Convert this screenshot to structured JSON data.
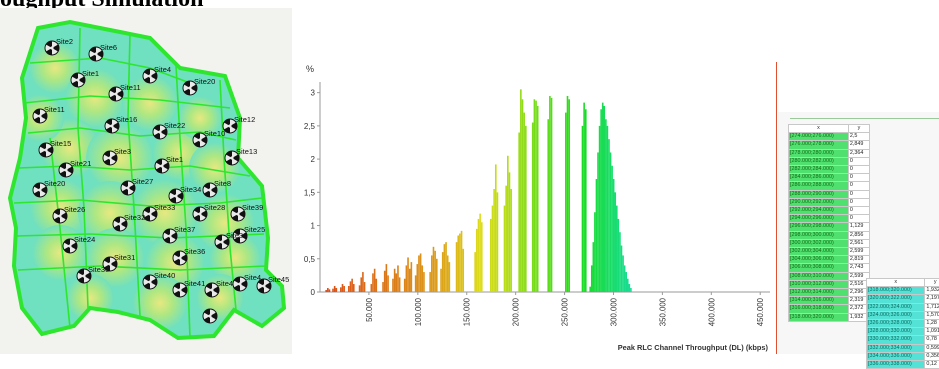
{
  "heading": "oughput Simulation",
  "map": {
    "site_labels": [
      "Site2",
      "Site6",
      "Site4",
      "Site1",
      "Site11",
      "Site20",
      "Site12",
      "Site11",
      "Site16",
      "Site22",
      "Site10",
      "Site15",
      "Site3",
      "Site13",
      "Site21",
      "Site1",
      "Site20",
      "Site27",
      "Site34",
      "Site8",
      "Site26",
      "Site33",
      "Site28",
      "Site39",
      "Site25",
      "Site32",
      "Site37",
      "Site38",
      "Site24",
      "Site31",
      "Site36",
      "Site30",
      "Site40",
      "Site41",
      "Site4",
      "Site4",
      "Site45"
    ]
  },
  "chart_data": {
    "type": "bar",
    "ylabel": "%",
    "xlabel": "Peak RLC Channel Throughput (DL) (kbps)",
    "xlim": [
      0,
      460
    ],
    "ylim": [
      0,
      3.1
    ],
    "yticks": [
      "0",
      "0,5",
      "1",
      "1,5",
      "2",
      "2,5",
      "3"
    ],
    "xticks": [
      "50.000",
      "100.000",
      "150.000",
      "200.000",
      "250.000",
      "300.000",
      "350.000",
      "400.000",
      "450.000"
    ],
    "bin_width": 1,
    "clusters": [
      {
        "center": 8,
        "values": [
          0.03,
          0.06,
          0.04
        ]
      },
      {
        "center": 15,
        "values": [
          0.05,
          0.09,
          0.06
        ]
      },
      {
        "center": 23,
        "values": [
          0.07,
          0.12,
          0.09
        ]
      },
      {
        "center": 32,
        "values": [
          0.09,
          0.16,
          0.2,
          0.12
        ]
      },
      {
        "center": 43,
        "values": [
          0.1,
          0.22,
          0.3,
          0.15
        ]
      },
      {
        "center": 55,
        "values": [
          0.12,
          0.28,
          0.35,
          0.2
        ]
      },
      {
        "center": 67,
        "values": [
          0.15,
          0.32,
          0.42,
          0.25
        ]
      },
      {
        "center": 78,
        "values": [
          0.2,
          0.35,
          0.28,
          0.4,
          0.22
        ]
      },
      {
        "center": 90,
        "values": [
          0.2,
          0.4,
          0.52,
          0.35,
          0.45
        ]
      },
      {
        "center": 102,
        "values": [
          0.25,
          0.42,
          0.55,
          0.58,
          0.4,
          0.3
        ]
      },
      {
        "center": 116,
        "values": [
          0.3,
          0.55,
          0.68,
          0.62,
          0.5
        ]
      },
      {
        "center": 128,
        "values": [
          0.35,
          0.6,
          0.72,
          0.75,
          0.55,
          0.45
        ]
      },
      {
        "center": 143,
        "values": [
          0.75,
          0.85,
          0.88,
          0.92,
          0.65
        ]
      },
      {
        "center": 162,
        "values": [
          0.6,
          0.95,
          1.1,
          1.18,
          1.05
        ]
      },
      {
        "center": 178,
        "values": [
          1.1,
          1.3,
          1.55,
          1.92,
          1.5
        ]
      },
      {
        "center": 192,
        "values": [
          1.3,
          1.6,
          2.05,
          1.8,
          1.55
        ]
      },
      {
        "center": 207,
        "values": [
          2.4,
          3.05,
          2.9,
          2.7,
          2.5
        ]
      },
      {
        "center": 220,
        "values": [
          2.55,
          2.9,
          2.88,
          2.8
        ]
      },
      {
        "center": 235,
        "values": [
          2.6,
          2.95,
          2.92
        ]
      },
      {
        "center": 253,
        "values": [
          2.7,
          2.95,
          2.9
        ]
      },
      {
        "center": 270,
        "values": [
          2.5,
          2.85,
          2.75
        ]
      },
      {
        "center": 297,
        "values": [
          0.08,
          0.4,
          0.75,
          1.2,
          1.7,
          2.1,
          2.5,
          2.75,
          2.85,
          2.8,
          2.6,
          2.5,
          2.3,
          2.1,
          1.9,
          1.7,
          1.5,
          1.3,
          1.1,
          0.9,
          0.7,
          0.55,
          0.4,
          0.3,
          0.2,
          0.12,
          0.06
        ]
      }
    ]
  },
  "table1": {
    "headers": [
      "x",
      "y"
    ],
    "rows": [
      [
        "[274.000;276.000)",
        "2,5"
      ],
      [
        "[276.000;278.000)",
        "2,849"
      ],
      [
        "[278.000;280.000)",
        "2,364"
      ],
      [
        "[280.000;282.000)",
        "0"
      ],
      [
        "[282.000;284.000)",
        "0"
      ],
      [
        "[284.000;286.000)",
        "0"
      ],
      [
        "[286.000;288.000)",
        "0"
      ],
      [
        "[288.000;290.000)",
        "0"
      ],
      [
        "[290.000;292.000)",
        "0"
      ],
      [
        "[292.000;294.000)",
        "0"
      ],
      [
        "[294.000;296.000)",
        "0"
      ],
      [
        "[296.000;298.000)",
        "1,129"
      ],
      [
        "[298.000;300.000)",
        "2,856"
      ],
      [
        "[300.000;302.000)",
        "2,561"
      ],
      [
        "[302.000;304.000)",
        "2,599"
      ],
      [
        "[304.000;306.000)",
        "2,819"
      ],
      [
        "[306.000;308.000)",
        "2,743"
      ],
      [
        "[308.000;310.000)",
        "2,599"
      ],
      [
        "[310.000;312.000)",
        "2,516"
      ],
      [
        "[312.000;314.000)",
        "2,296"
      ],
      [
        "[314.000;316.000)",
        "2,319"
      ],
      [
        "[316.000;318.000)",
        "2,372"
      ],
      [
        "[318.000;320.000)",
        "1,932"
      ]
    ]
  },
  "table2": {
    "headers": [
      "x",
      "y"
    ],
    "rows": [
      [
        "[318.000;320.000)",
        "1,932"
      ],
      [
        "[320.000;322.000)",
        "2,197"
      ],
      [
        "[322.000;324.000)",
        "1,712"
      ],
      [
        "[324.000;326.000)",
        "1,570"
      ],
      [
        "[326.000;328.000)",
        "1,28"
      ],
      [
        "[328.000;330.000)",
        "1,091"
      ],
      [
        "[330.000;332.000)",
        "0,78"
      ],
      [
        "[332.000;334.000)",
        "0,599"
      ],
      [
        "[334.000;336.000)",
        "0,356"
      ],
      [
        "[336.000;338.000)",
        "0,12"
      ]
    ]
  },
  "colors": {
    "map_outline": "#2ee62e",
    "coverage_fill": "#6fe0c0",
    "chart_axis": "#9a9a9a",
    "table_x_green": "#50e070",
    "table_x_teal": "#53e2d5"
  }
}
